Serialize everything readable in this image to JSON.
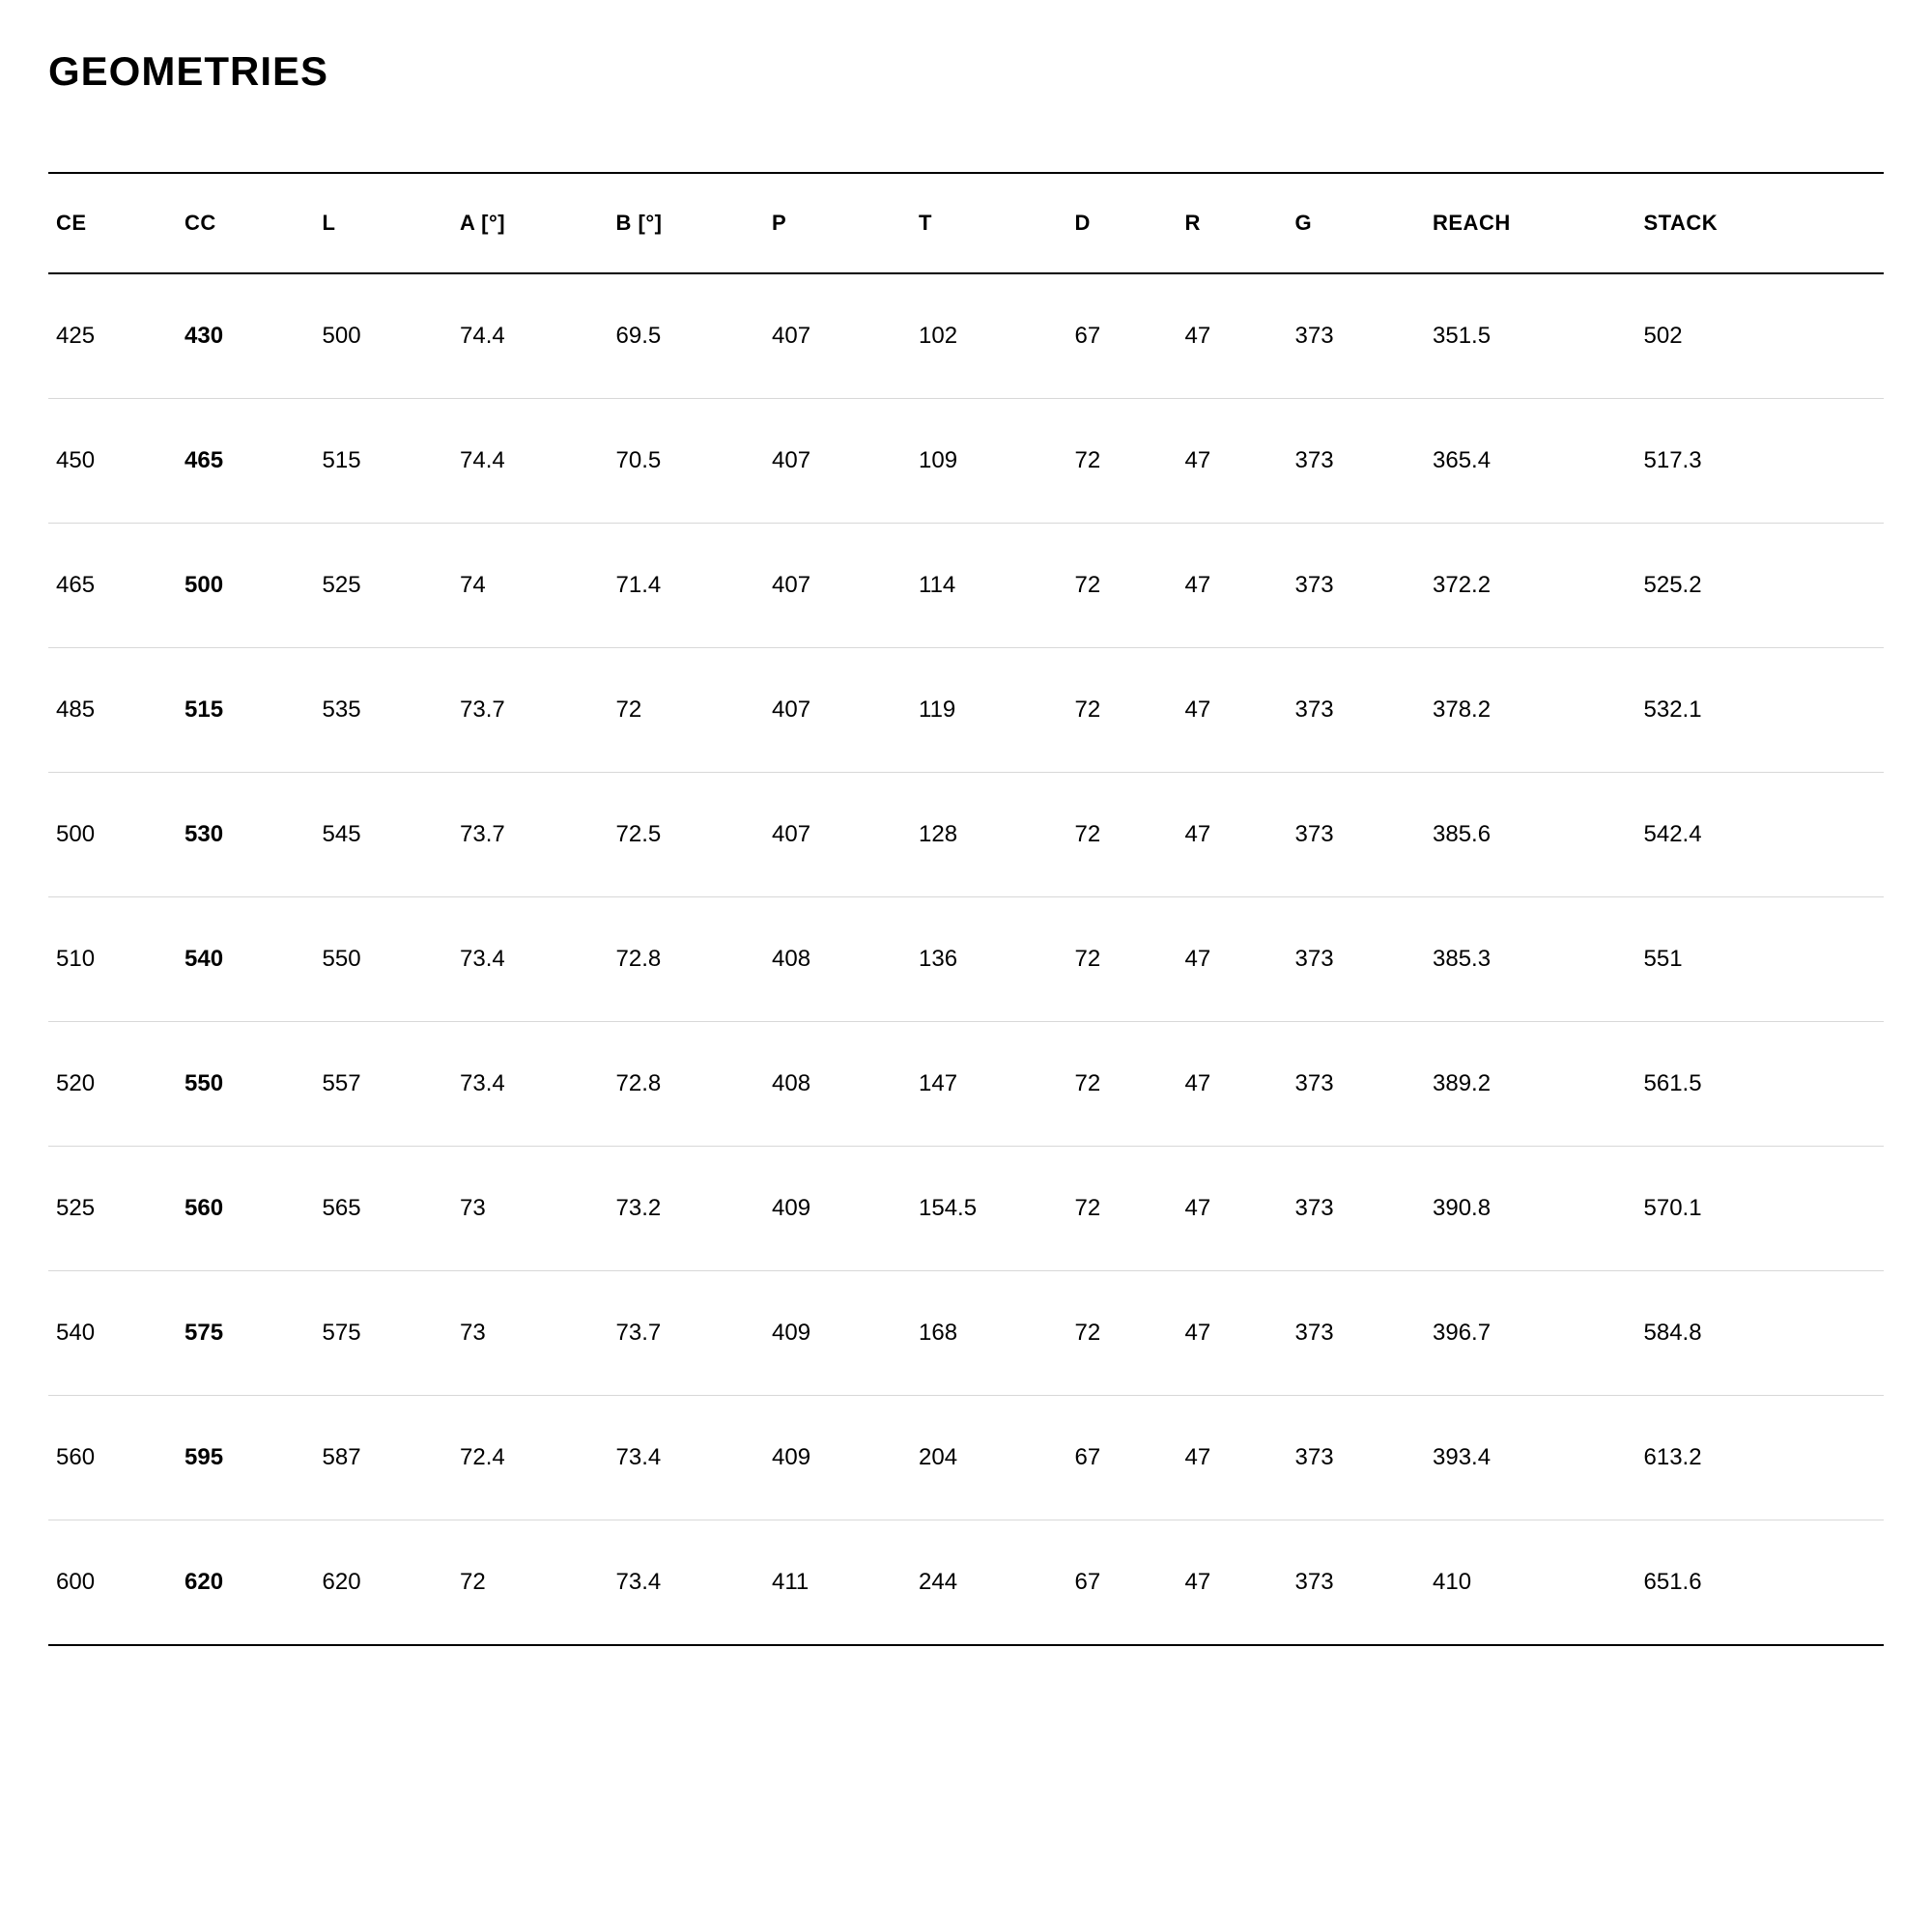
{
  "title": "GEOMETRIES",
  "table": {
    "columns": [
      {
        "key": "ce",
        "label": "CE",
        "class": "col-ce"
      },
      {
        "key": "cc",
        "label": "CC",
        "class": "col-cc",
        "bold": true
      },
      {
        "key": "l",
        "label": "L",
        "class": "col-l"
      },
      {
        "key": "a",
        "label": "A [°]",
        "class": "col-a"
      },
      {
        "key": "b",
        "label": "B [°]",
        "class": "col-b"
      },
      {
        "key": "p",
        "label": "P",
        "class": "col-p"
      },
      {
        "key": "t",
        "label": "T",
        "class": "col-t"
      },
      {
        "key": "d",
        "label": "D",
        "class": "col-d"
      },
      {
        "key": "r",
        "label": "R",
        "class": "col-r"
      },
      {
        "key": "g",
        "label": "G",
        "class": "col-g"
      },
      {
        "key": "reach",
        "label": "REACH",
        "class": "col-reach"
      },
      {
        "key": "stack",
        "label": "STACK",
        "class": "col-stack"
      }
    ],
    "rows": [
      {
        "ce": "425",
        "cc": "430",
        "l": "500",
        "a": "74.4",
        "b": "69.5",
        "p": "407",
        "t": "102",
        "d": "67",
        "r": "47",
        "g": "373",
        "reach": "351.5",
        "stack": "502"
      },
      {
        "ce": "450",
        "cc": "465",
        "l": "515",
        "a": "74.4",
        "b": "70.5",
        "p": "407",
        "t": "109",
        "d": "72",
        "r": "47",
        "g": "373",
        "reach": "365.4",
        "stack": "517.3"
      },
      {
        "ce": "465",
        "cc": "500",
        "l": "525",
        "a": "74",
        "b": "71.4",
        "p": "407",
        "t": "114",
        "d": "72",
        "r": "47",
        "g": "373",
        "reach": "372.2",
        "stack": "525.2"
      },
      {
        "ce": "485",
        "cc": "515",
        "l": "535",
        "a": "73.7",
        "b": "72",
        "p": "407",
        "t": "119",
        "d": "72",
        "r": "47",
        "g": "373",
        "reach": "378.2",
        "stack": "532.1"
      },
      {
        "ce": "500",
        "cc": "530",
        "l": "545",
        "a": "73.7",
        "b": "72.5",
        "p": "407",
        "t": "128",
        "d": "72",
        "r": "47",
        "g": "373",
        "reach": "385.6",
        "stack": "542.4"
      },
      {
        "ce": "510",
        "cc": "540",
        "l": "550",
        "a": "73.4",
        "b": "72.8",
        "p": "408",
        "t": "136",
        "d": "72",
        "r": "47",
        "g": "373",
        "reach": "385.3",
        "stack": "551"
      },
      {
        "ce": "520",
        "cc": "550",
        "l": "557",
        "a": "73.4",
        "b": "72.8",
        "p": "408",
        "t": "147",
        "d": "72",
        "r": "47",
        "g": "373",
        "reach": "389.2",
        "stack": "561.5"
      },
      {
        "ce": "525",
        "cc": "560",
        "l": "565",
        "a": "73",
        "b": "73.2",
        "p": "409",
        "t": "154.5",
        "d": "72",
        "r": "47",
        "g": "373",
        "reach": "390.8",
        "stack": "570.1"
      },
      {
        "ce": "540",
        "cc": "575",
        "l": "575",
        "a": "73",
        "b": "73.7",
        "p": "409",
        "t": "168",
        "d": "72",
        "r": "47",
        "g": "373",
        "reach": "396.7",
        "stack": "584.8"
      },
      {
        "ce": "560",
        "cc": "595",
        "l": "587",
        "a": "72.4",
        "b": "73.4",
        "p": "409",
        "t": "204",
        "d": "67",
        "r": "47",
        "g": "373",
        "reach": "393.4",
        "stack": "613.2"
      },
      {
        "ce": "600",
        "cc": "620",
        "l": "620",
        "a": "72",
        "b": "73.4",
        "p": "411",
        "t": "244",
        "d": "67",
        "r": "47",
        "g": "373",
        "reach": "410",
        "stack": "651.6"
      }
    ]
  },
  "styling": {
    "background_color": "#ffffff",
    "title_color": "#000000",
    "title_fontsize": 42,
    "title_fontweight": 700,
    "header_border_color": "#000000",
    "header_border_width": 2,
    "row_border_color": "#d8d8d8",
    "row_border_width": 1,
    "header_fontsize": 22,
    "header_fontweight": 700,
    "cell_fontsize": 24,
    "cell_fontweight": 400,
    "bold_column_fontweight": 700,
    "header_padding_v": 38,
    "cell_padding_v": 50
  }
}
